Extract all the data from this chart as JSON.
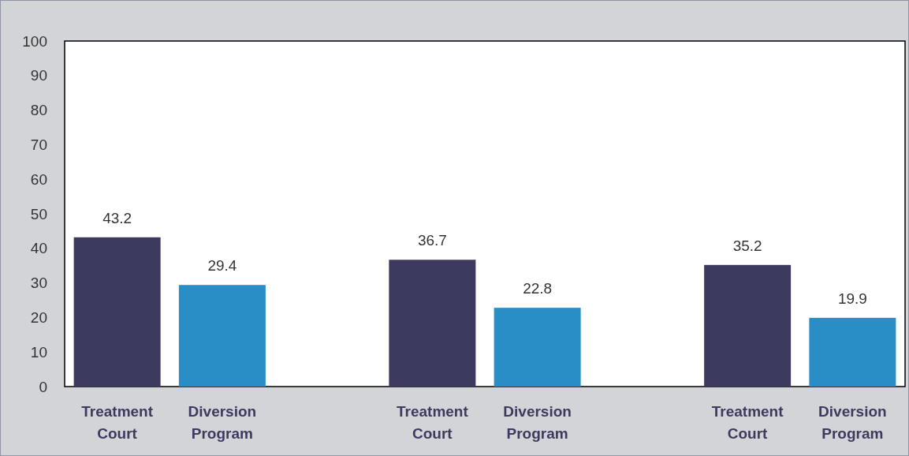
{
  "chart_data": {
    "type": "bar",
    "categories": [
      "Treatment Court",
      "Diversion Program",
      null,
      "Treatment Court",
      "Diversion Program",
      null,
      "Treatment Court",
      "Diversion Program"
    ],
    "values": [
      43.2,
      29.4,
      null,
      36.7,
      22.8,
      null,
      35.2,
      19.9
    ],
    "colors": [
      "#3c3a5f",
      "#2a8ec6",
      null,
      "#3c3a5f",
      "#2a8ec6",
      null,
      "#3c3a5f",
      "#2a8ec6"
    ],
    "ylim": [
      0,
      100
    ],
    "yticks": [
      0,
      10,
      20,
      30,
      40,
      50,
      60,
      70,
      80,
      90,
      100
    ],
    "data_labels": true,
    "grid": false
  }
}
